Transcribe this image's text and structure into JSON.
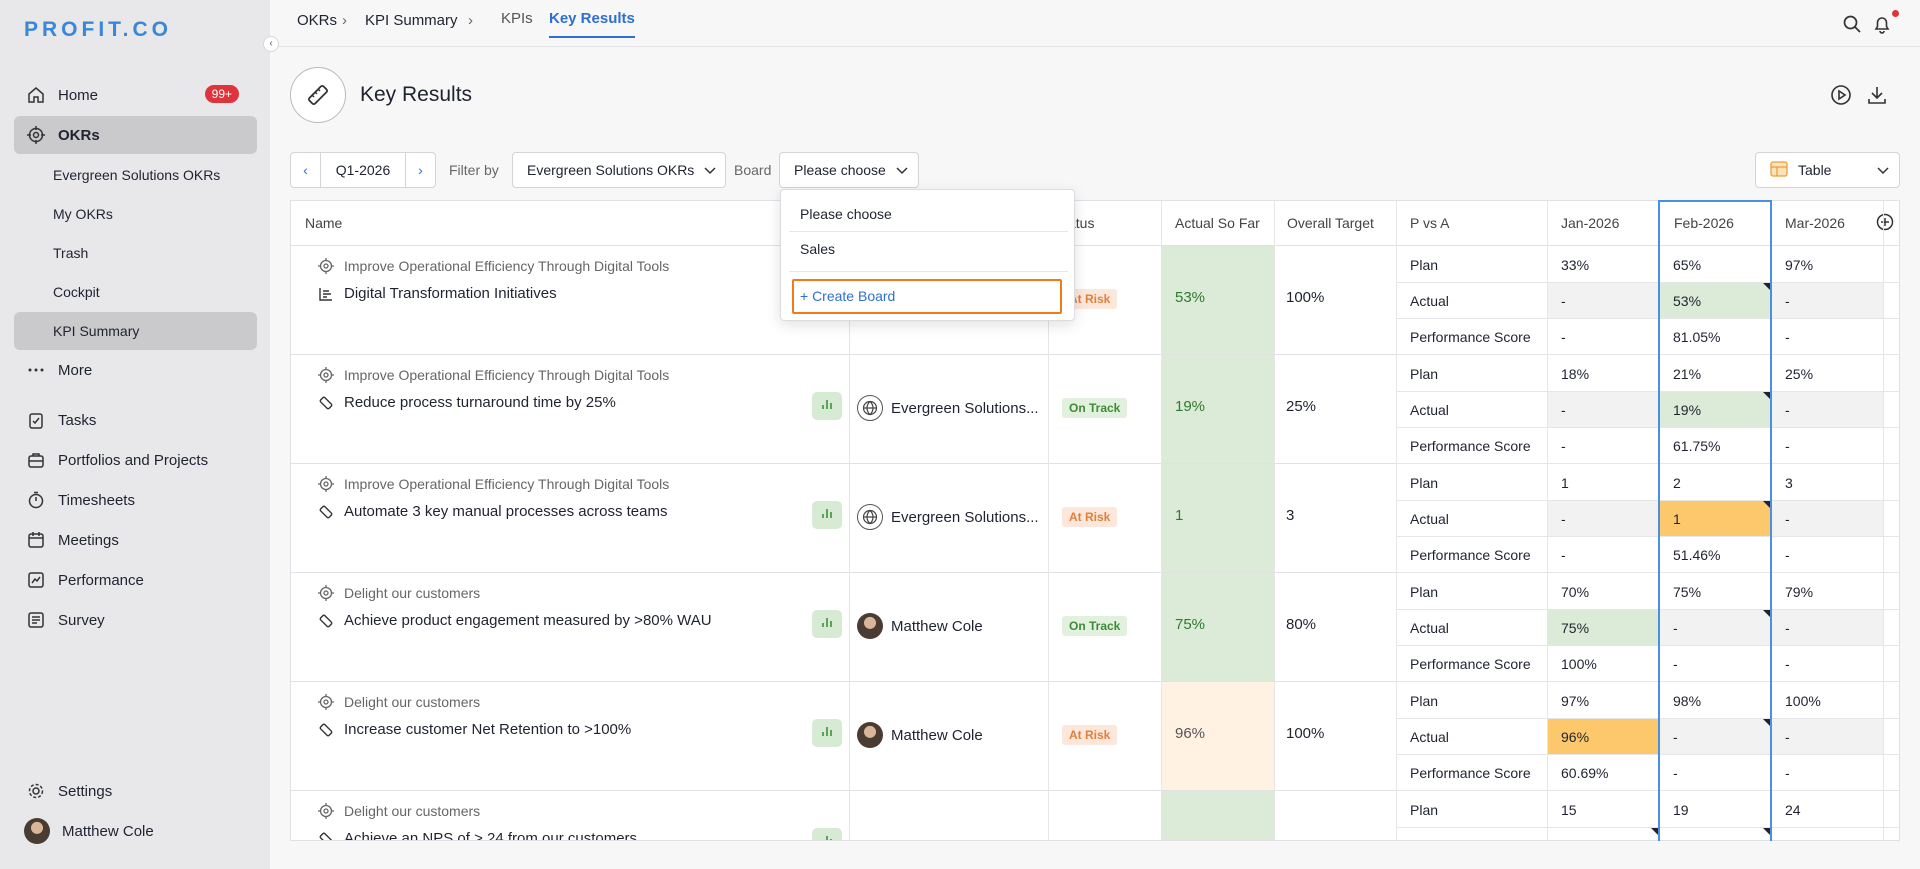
{
  "brand": {
    "logo": "PROFIT.CO",
    "accent": "#3a87d9"
  },
  "sidebar": {
    "items": [
      {
        "label": "Home",
        "icon": "home-icon",
        "badge": "99+"
      },
      {
        "label": "OKRs",
        "icon": "target-icon"
      },
      {
        "label": "More",
        "icon": "dots-icon"
      },
      {
        "label": "Tasks",
        "icon": "clipboard-icon"
      },
      {
        "label": "Portfolios and Projects",
        "icon": "briefcase-icon"
      },
      {
        "label": "Timesheets",
        "icon": "stopwatch-icon"
      },
      {
        "label": "Meetings",
        "icon": "calendar-icon"
      },
      {
        "label": "Performance",
        "icon": "chart-icon"
      },
      {
        "label": "Survey",
        "icon": "survey-icon"
      }
    ],
    "sub_items": [
      "Evergreen Solutions OKRs",
      "My OKRs",
      "Trash",
      "Cockpit",
      "KPI Summary"
    ],
    "settings": "Settings",
    "user": "Matthew Cole"
  },
  "topbar": {
    "crumbs": [
      "OKRs",
      "KPI Summary"
    ],
    "tabs": [
      "KPIs",
      "Key Results"
    ]
  },
  "page": {
    "title": "Key Results"
  },
  "filters": {
    "period": "Q1-2026",
    "filter_label": "Filter by",
    "filter_value": "Evergreen Solutions OKRs",
    "board_label": "Board",
    "board_value": "Please choose",
    "view": "Table"
  },
  "dropdown": {
    "options": [
      "Please choose",
      "Sales"
    ],
    "create": "+ Create Board"
  },
  "table": {
    "headers": [
      "Name",
      "atus",
      "Actual So Far",
      "Overall Target",
      "P vs A",
      "Jan-2026",
      "Feb-2026",
      "Mar-2026"
    ],
    "pva_labels": [
      "Plan",
      "Actual",
      "Performance Score"
    ],
    "rows": [
      {
        "parent": "Improve Operational Efficiency Through Digital Tools",
        "name": "Digital Transformation Initiatives",
        "owner": "",
        "status": "At Risk",
        "actual": "53%",
        "target": "100%",
        "plan": [
          "33%",
          "65%",
          "97%"
        ],
        "act": [
          "-",
          "53%",
          "-"
        ],
        "score": [
          "-",
          "81.05%",
          "-"
        ]
      },
      {
        "parent": "Improve Operational Efficiency Through Digital Tools",
        "name": "Reduce process turnaround time by 25%",
        "owner": "Evergreen Solutions...",
        "status": "On Track",
        "actual": "19%",
        "target": "25%",
        "plan": [
          "18%",
          "21%",
          "25%"
        ],
        "act": [
          "-",
          "19%",
          "-"
        ],
        "score": [
          "-",
          "61.75%",
          "-"
        ]
      },
      {
        "parent": "Improve Operational Efficiency Through Digital Tools",
        "name": "Automate 3 key manual processes across teams",
        "owner": "Evergreen Solutions...",
        "status": "At Risk",
        "actual": "1",
        "target": "3",
        "plan": [
          "1",
          "2",
          "3"
        ],
        "act": [
          "-",
          "1",
          "-"
        ],
        "score": [
          "-",
          "51.46%",
          "-"
        ]
      },
      {
        "parent": "Delight our customers",
        "name": "Achieve product engagement measured by >80% WAU",
        "owner": "Matthew Cole",
        "status": "On Track",
        "actual": "75%",
        "target": "80%",
        "plan": [
          "70%",
          "75%",
          "79%"
        ],
        "act": [
          "75%",
          "-",
          "-"
        ],
        "score": [
          "100%",
          "-",
          "-"
        ]
      },
      {
        "parent": "Delight our customers",
        "name": "Increase customer Net Retention to >100%",
        "owner": "Matthew Cole",
        "status": "At Risk",
        "actual": "96%",
        "target": "100%",
        "plan": [
          "97%",
          "98%",
          "100%"
        ],
        "act": [
          "96%",
          "-",
          "-"
        ],
        "score": [
          "60.69%",
          "-",
          "-"
        ]
      },
      {
        "parent": "Delight our customers",
        "name": "Achieve an NPS of > 24 from our customers",
        "owner": "",
        "status": "",
        "actual": "",
        "target": "",
        "plan": [
          "15",
          "19",
          "24"
        ],
        "act": [
          "",
          "",
          ""
        ],
        "score": [
          "",
          "",
          ""
        ]
      }
    ]
  }
}
